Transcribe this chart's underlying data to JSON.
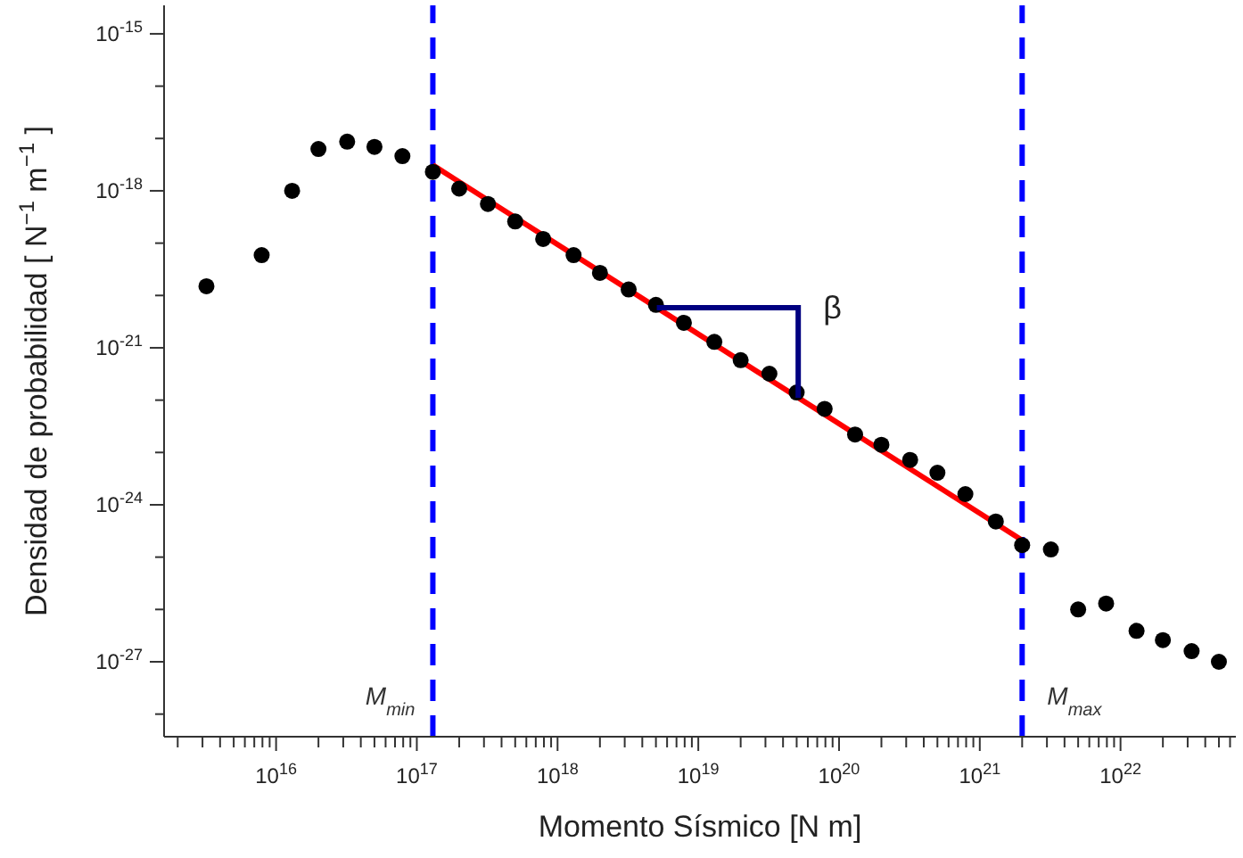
{
  "chart_data": {
    "type": "scatter",
    "xlabel": "Momento Sísmico [N m]",
    "ylabel": "Densidad de probabilidad  [ N$^{−1}$ m$^{−1}$ ]",
    "log": "xy",
    "grid": false,
    "legend": false,
    "marker": "circle",
    "xlim": [
      1600000000000000.0,
      6.6e+22
    ],
    "ylim": [
      3.7e-29,
      3.5e-15
    ],
    "xticks": [
      {
        "value": 2000000000000000.0,
        "label": null
      },
      {
        "value": 3000000000000000.0,
        "label": null
      },
      {
        "value": 4000000000000000.0,
        "label": null
      },
      {
        "value": 5000000000000000.0,
        "label": null
      },
      {
        "value": 6000000000000000.0,
        "label": null
      },
      {
        "value": 7000000000000000.0,
        "label": null
      },
      {
        "value": 8000000000000000.0,
        "label": null
      },
      {
        "value": 9000000000000000.0,
        "label": null
      },
      {
        "value": 1e+16,
        "label": "10$^{16}$"
      },
      {
        "value": 2e+16,
        "label": null
      },
      {
        "value": 3e+16,
        "label": null
      },
      {
        "value": 4e+16,
        "label": null
      },
      {
        "value": 5e+16,
        "label": null
      },
      {
        "value": 6e+16,
        "label": null
      },
      {
        "value": 7e+16,
        "label": null
      },
      {
        "value": 8e+16,
        "label": null
      },
      {
        "value": 9e+16,
        "label": null
      },
      {
        "value": 1e+17,
        "label": "10$^{17}$"
      },
      {
        "value": 2e+17,
        "label": null
      },
      {
        "value": 3e+17,
        "label": null
      },
      {
        "value": 4e+17,
        "label": null
      },
      {
        "value": 5e+17,
        "label": null
      },
      {
        "value": 6e+17,
        "label": null
      },
      {
        "value": 7e+17,
        "label": null
      },
      {
        "value": 8e+17,
        "label": null
      },
      {
        "value": 9e+17,
        "label": null
      },
      {
        "value": 1e+18,
        "label": "10$^{18}$"
      },
      {
        "value": 2e+18,
        "label": null
      },
      {
        "value": 3e+18,
        "label": null
      },
      {
        "value": 4e+18,
        "label": null
      },
      {
        "value": 5e+18,
        "label": null
      },
      {
        "value": 6e+18,
        "label": null
      },
      {
        "value": 7e+18,
        "label": null
      },
      {
        "value": 8e+18,
        "label": null
      },
      {
        "value": 9e+18,
        "label": null
      },
      {
        "value": 1e+19,
        "label": "10$^{19}$"
      },
      {
        "value": 2e+19,
        "label": null
      },
      {
        "value": 3e+19,
        "label": null
      },
      {
        "value": 4e+19,
        "label": null
      },
      {
        "value": 5e+19,
        "label": null
      },
      {
        "value": 6e+19,
        "label": null
      },
      {
        "value": 7e+19,
        "label": null
      },
      {
        "value": 8e+19,
        "label": null
      },
      {
        "value": 9e+19,
        "label": null
      },
      {
        "value": 1e+20,
        "label": "10$^{20}$"
      },
      {
        "value": 2e+20,
        "label": null
      },
      {
        "value": 3e+20,
        "label": null
      },
      {
        "value": 4e+20,
        "label": null
      },
      {
        "value": 5e+20,
        "label": null
      },
      {
        "value": 6e+20,
        "label": null
      },
      {
        "value": 7e+20,
        "label": null
      },
      {
        "value": 8e+20,
        "label": null
      },
      {
        "value": 9e+20,
        "label": null
      },
      {
        "value": 1e+21,
        "label": "10$^{21}$"
      },
      {
        "value": 2e+21,
        "label": null
      },
      {
        "value": 3e+21,
        "label": null
      },
      {
        "value": 4e+21,
        "label": null
      },
      {
        "value": 5e+21,
        "label": null
      },
      {
        "value": 6e+21,
        "label": null
      },
      {
        "value": 7e+21,
        "label": null
      },
      {
        "value": 8e+21,
        "label": null
      },
      {
        "value": 9e+21,
        "label": null
      },
      {
        "value": 1e+22,
        "label": "10$^{22}$"
      },
      {
        "value": 2e+22,
        "label": null
      },
      {
        "value": 3e+22,
        "label": null
      },
      {
        "value": 4e+22,
        "label": null
      },
      {
        "value": 5e+22,
        "label": null
      },
      {
        "value": 6e+22,
        "label": null
      }
    ],
    "yticks": [
      {
        "value": 1e-15,
        "label": "10$^{-15}$"
      },
      {
        "value": 1e-16,
        "label": null
      },
      {
        "value": 1e-17,
        "label": null
      },
      {
        "value": 1e-18,
        "label": "10$^{-18}$"
      },
      {
        "value": 1e-19,
        "label": null
      },
      {
        "value": 1e-20,
        "label": null
      },
      {
        "value": 1e-21,
        "label": "10$^{-21}$"
      },
      {
        "value": 1e-22,
        "label": null
      },
      {
        "value": 1e-23,
        "label": null
      },
      {
        "value": 1e-24,
        "label": "10$^{-24}$"
      },
      {
        "value": 1e-25,
        "label": null
      },
      {
        "value": 1e-26,
        "label": null
      },
      {
        "value": 1e-27,
        "label": "10$^{-27}$"
      },
      {
        "value": 1e-28,
        "label": null
      }
    ],
    "series": [
      {
        "color": "#000000",
        "x": [
          3200000000000000.0,
          7900000000000000.0,
          1.3e+16,
          2e+16,
          3.2e+16,
          5e+16,
          7.9e+16,
          1.3e+17,
          2e+17,
          3.2e+17,
          5e+17,
          7.9e+17,
          1.3e+18,
          2e+18,
          3.2e+18,
          5e+18,
          7.9e+18,
          1.3e+19,
          2e+19,
          3.2e+19,
          5e+19,
          7.9e+19,
          1.3e+20,
          2e+20,
          3.2e+20,
          5e+20,
          7.9e+20,
          1.3e+21,
          2e+21,
          3.2e+21,
          5e+21,
          7.9e+21,
          1.3e+22,
          2e+22,
          3.2e+22,
          5e+22
        ],
        "values": [
          1.5e-20,
          5.9e-20,
          1e-18,
          6.3e-18,
          8.7e-18,
          6.9e-18,
          4.6e-18,
          2.3e-18,
          1.1e-18,
          5.6e-19,
          2.6e-19,
          1.2e-19,
          5.9e-20,
          2.7e-20,
          1.3e-20,
          6.6e-21,
          3e-21,
          1.3e-21,
          5.8e-22,
          3.2e-22,
          1.4e-22,
          6.8e-23,
          2.2e-23,
          1.4e-23,
          7.2e-24,
          4.1e-24,
          1.6e-24,
          4.8e-25,
          1.7e-25,
          1.4e-25,
          1e-26,
          1.3e-26,
          3.9e-27,
          2.6e-27,
          1.6e-27,
          1e-27
        ]
      },
      {
        "type": "line",
        "marker": "none",
        "color": "#ff0000",
        "x": [
          1.3e+17,
          2e+21
        ],
        "values": [
          3.1e-18,
          2.1e-25
        ]
      }
    ],
    "ref_lines": [
      {
        "axis": "x",
        "value": 1.3e+17,
        "label": "M$_{min}$",
        "color": "#0000ff",
        "line_style": "dashed"
      },
      {
        "axis": "x",
        "value": 2e+21,
        "label": "M$_{max}$",
        "color": "#0000ff",
        "line_style": "dashed"
      }
    ],
    "annotations": [
      "β"
    ]
  }
}
